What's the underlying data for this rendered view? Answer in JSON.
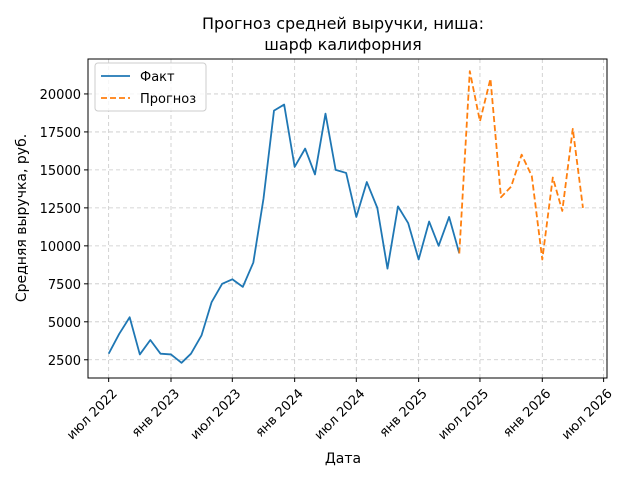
{
  "chart_data": {
    "type": "line",
    "title_line1": "Прогноз средней выручки, ниша:",
    "title_line2": "шарф калифорния",
    "xlabel": "Дата",
    "ylabel": "Средняя выручка, руб.",
    "x_ticks": [
      {
        "date": "2022-07-01",
        "label": "июл 2022"
      },
      {
        "date": "2023-01-01",
        "label": "янв 2023"
      },
      {
        "date": "2023-07-01",
        "label": "июл 2023"
      },
      {
        "date": "2024-01-01",
        "label": "янв 2024"
      },
      {
        "date": "2024-07-01",
        "label": "июл 2024"
      },
      {
        "date": "2025-01-01",
        "label": "янв 2025"
      },
      {
        "date": "2025-07-01",
        "label": "июл 2025"
      },
      {
        "date": "2026-01-01",
        "label": "янв 2026"
      },
      {
        "date": "2026-07-01",
        "label": "июл 2026"
      }
    ],
    "y_ticks": [
      2500,
      5000,
      7500,
      10000,
      12500,
      15000,
      17500,
      20000
    ],
    "xlim": [
      "2022-05-01",
      "2026-07-11"
    ],
    "ylim": [
      1300,
      22300
    ],
    "grid": true,
    "legend_position": "top-left",
    "series": [
      {
        "name": "Факт",
        "color": "#1f77b4",
        "style": "solid",
        "points": [
          [
            "2022-07-01",
            2900
          ],
          [
            "2022-08-01",
            4200
          ],
          [
            "2022-09-01",
            5300
          ],
          [
            "2022-10-01",
            2850
          ],
          [
            "2022-11-01",
            3800
          ],
          [
            "2022-12-01",
            2900
          ],
          [
            "2023-01-01",
            2850
          ],
          [
            "2023-02-01",
            2300
          ],
          [
            "2023-03-01",
            2900
          ],
          [
            "2023-04-01",
            4100
          ],
          [
            "2023-05-01",
            6300
          ],
          [
            "2023-06-01",
            7500
          ],
          [
            "2023-07-01",
            7800
          ],
          [
            "2023-08-01",
            7300
          ],
          [
            "2023-09-01",
            8900
          ],
          [
            "2023-10-01",
            13100
          ],
          [
            "2023-11-01",
            18900
          ],
          [
            "2023-12-01",
            19300
          ],
          [
            "2024-01-01",
            15200
          ],
          [
            "2024-02-01",
            16400
          ],
          [
            "2024-03-01",
            14700
          ],
          [
            "2024-04-01",
            18700
          ],
          [
            "2024-05-01",
            15000
          ],
          [
            "2024-06-01",
            14800
          ],
          [
            "2024-07-01",
            11900
          ],
          [
            "2024-08-01",
            14200
          ],
          [
            "2024-09-01",
            12500
          ],
          [
            "2024-10-01",
            8500
          ],
          [
            "2024-11-01",
            12600
          ],
          [
            "2024-12-01",
            11500
          ],
          [
            "2025-01-01",
            9100
          ],
          [
            "2025-02-01",
            11600
          ],
          [
            "2025-03-01",
            10000
          ],
          [
            "2025-04-01",
            11900
          ],
          [
            "2025-05-01",
            9500
          ]
        ]
      },
      {
        "name": "Прогноз",
        "color": "#ff7f0e",
        "style": "dashed",
        "points": [
          [
            "2025-05-01",
            9500
          ],
          [
            "2025-06-01",
            21500
          ],
          [
            "2025-07-01",
            18200
          ],
          [
            "2025-08-01",
            21000
          ],
          [
            "2025-09-01",
            13200
          ],
          [
            "2025-10-01",
            13900
          ],
          [
            "2025-11-01",
            16000
          ],
          [
            "2025-12-01",
            14600
          ],
          [
            "2026-01-01",
            9100
          ],
          [
            "2026-02-01",
            14500
          ],
          [
            "2026-03-01",
            12300
          ],
          [
            "2026-04-01",
            17700
          ],
          [
            "2026-05-01",
            12500
          ]
        ]
      }
    ]
  }
}
